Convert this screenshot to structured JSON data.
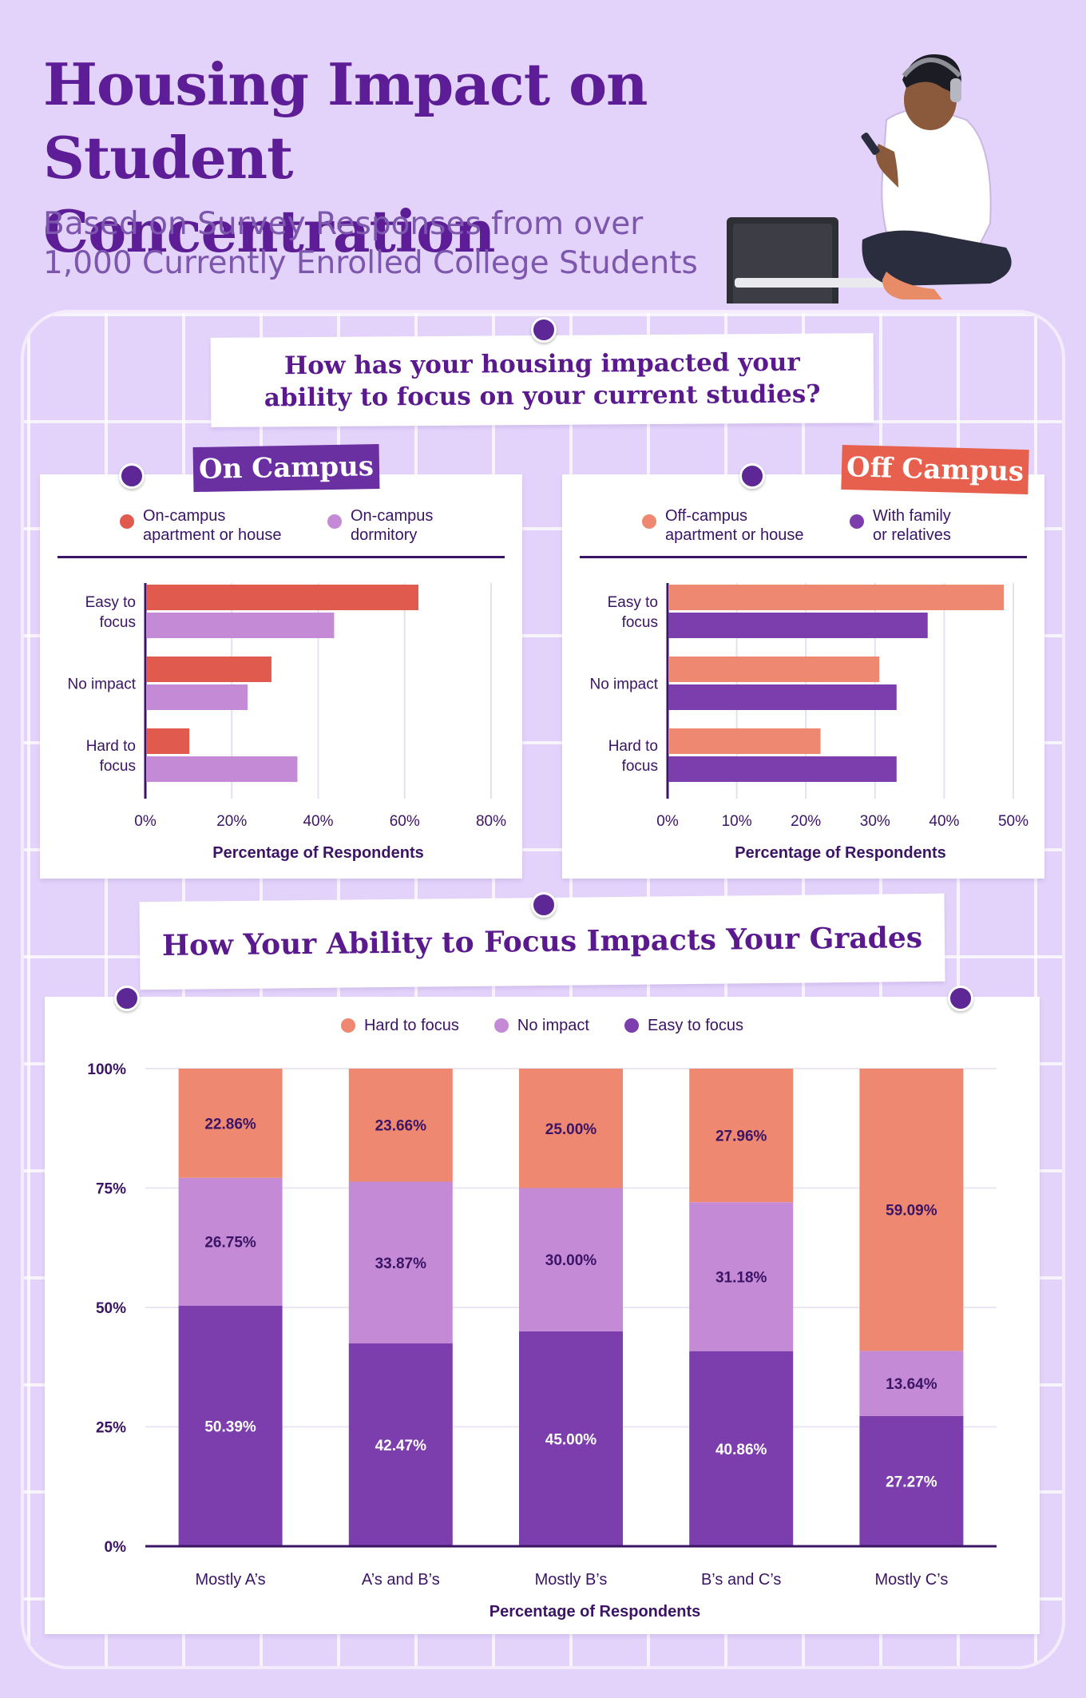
{
  "header": {
    "title_line1": "Housing Impact on",
    "title_line2": "Student Concentration",
    "subtitle_line1": "Based on Survey Responses from over",
    "subtitle_line2": "1,000 Currently Enrolled College Students"
  },
  "question1": {
    "line1": "How has your housing impacted your",
    "line2": "ability to focus on your current studies?"
  },
  "question2": {
    "text": "How Your Ability to Focus Impacts Your Grades"
  },
  "on_campus": {
    "tag": "On Campus",
    "legend": [
      {
        "label": "On-campus\napartment or house",
        "color": "#e05a4e"
      },
      {
        "label": "On-campus\ndormitory",
        "color": "#c48ad6"
      }
    ]
  },
  "off_campus": {
    "tag": "Off Campus",
    "legend": [
      {
        "label": "Off-campus\napartment or house",
        "color": "#ee8870"
      },
      {
        "label": "With family\nor relatives",
        "color": "#7c3eac"
      }
    ]
  },
  "grades_legend": [
    {
      "label": "Hard to focus",
      "color": "#ee8870"
    },
    {
      "label": "No impact",
      "color": "#c48ad6"
    },
    {
      "label": "Easy to focus",
      "color": "#7c3eac"
    }
  ],
  "colors": {
    "title": "#5c1d96",
    "on_apartment": "#e05a4e",
    "on_dorm": "#c48ad6",
    "off_apartment": "#ee8870",
    "off_family": "#7c3eac",
    "hard": "#ee8870",
    "no_impact": "#c48ad6",
    "easy": "#7c3eac"
  },
  "chart_data": [
    {
      "type": "bar",
      "orientation": "horizontal",
      "title": "On Campus",
      "categories": [
        "Easy to\nfocus",
        "No impact",
        "Hard to\nfocus"
      ],
      "series": [
        {
          "name": "On-campus apartment or house",
          "values": [
            63,
            29,
            10
          ]
        },
        {
          "name": "On-campus dormitory",
          "values": [
            43.5,
            23.5,
            35
          ]
        }
      ],
      "xlim": [
        0,
        80
      ],
      "ticks": [
        "0%",
        "20%",
        "40%",
        "60%",
        "80%"
      ],
      "tick_values": [
        0,
        20,
        40,
        60,
        80
      ],
      "xlabel": "Percentage of Respondents"
    },
    {
      "type": "bar",
      "orientation": "horizontal",
      "title": "Off Campus",
      "categories": [
        "Easy to\nfocus",
        "No impact",
        "Hard to\nfocus"
      ],
      "series": [
        {
          "name": "Off-campus apartment or house",
          "values": [
            48.5,
            30.5,
            22
          ]
        },
        {
          "name": "With family or relatives",
          "values": [
            37.5,
            33,
            33
          ]
        }
      ],
      "xlim": [
        0,
        50
      ],
      "ticks": [
        "0%",
        "10%",
        "20%",
        "30%",
        "40%",
        "50%"
      ],
      "tick_values": [
        0,
        10,
        20,
        30,
        40,
        50
      ],
      "xlabel": "Percentage of Respondents"
    },
    {
      "type": "bar",
      "stacked": true,
      "title": "How Your Ability to Focus Impacts Your Grades",
      "categories": [
        "Mostly A’s",
        "A’s and B’s",
        "Mostly B’s",
        "B’s and C’s",
        "Mostly C’s"
      ],
      "series": [
        {
          "name": "Easy to focus",
          "values": [
            50.39,
            42.47,
            45.0,
            40.86,
            27.27
          ],
          "labels": [
            "50.39%",
            "42.47%",
            "45.00%",
            "40.86%",
            "27.27%"
          ]
        },
        {
          "name": "No impact",
          "values": [
            26.75,
            33.87,
            30.0,
            31.18,
            13.64
          ],
          "labels": [
            "26.75%",
            "33.87%",
            "30.00%",
            "31.18%",
            "13.64%"
          ]
        },
        {
          "name": "Hard to focus",
          "values": [
            22.86,
            23.66,
            25.0,
            27.96,
            59.09
          ],
          "labels": [
            "22.86%",
            "23.66%",
            "25.00%",
            "27.96%",
            "59.09%"
          ]
        }
      ],
      "ylim": [
        0,
        100
      ],
      "ticks": [
        "0%",
        "25%",
        "50%",
        "75%",
        "100%"
      ],
      "tick_values": [
        0,
        25,
        50,
        75,
        100
      ],
      "xlabel": "Percentage of Respondents"
    }
  ]
}
